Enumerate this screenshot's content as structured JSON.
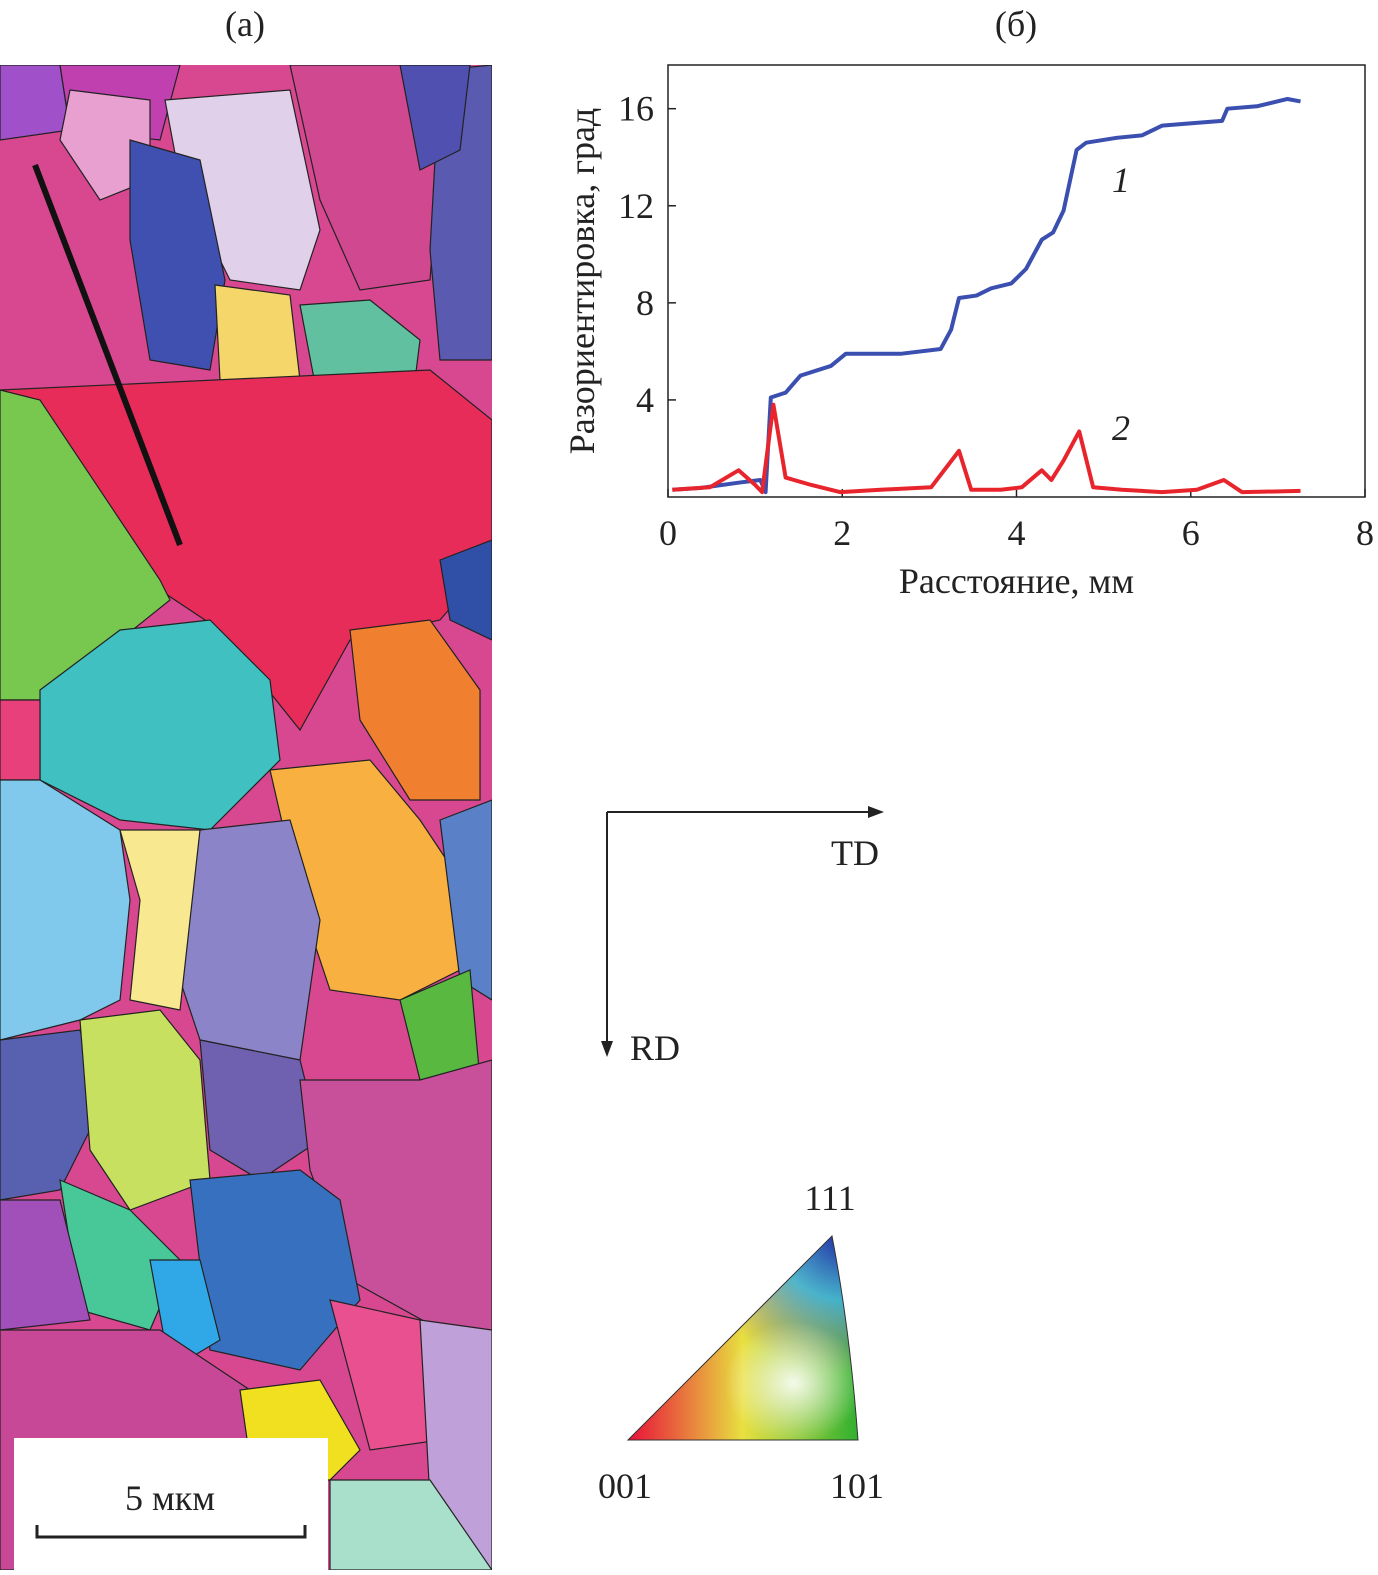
{
  "panel_labels": [
    "(а)",
    "(б)"
  ],
  "map": {
    "scale_bar": "5 мкм"
  },
  "directions": {
    "td": "TD",
    "rd": "RD"
  },
  "triangle": {
    "top": "111",
    "left": "001",
    "right": "101"
  },
  "chart_data": {
    "type": "line",
    "xlabel": "Расстояние, мм",
    "ylabel": "Разориентировка, град",
    "xlim": [
      0,
      8
    ],
    "ylim": [
      0,
      17.8
    ],
    "xticks": [
      0,
      2,
      4,
      6,
      8
    ],
    "yticks": [
      4,
      8,
      12,
      16
    ],
    "series": [
      {
        "name": "1",
        "color": "#3a4fb0",
        "x": [
          0.05,
          0.37,
          0.83,
          1.06,
          1.12,
          1.18,
          1.35,
          1.52,
          1.87,
          2.04,
          2.67,
          3.13,
          3.25,
          3.34,
          3.54,
          3.71,
          3.94,
          4.11,
          4.29,
          4.42,
          4.54,
          4.69,
          4.8,
          5.15,
          5.44,
          5.67,
          6.01,
          6.36,
          6.42,
          6.76,
          7.11,
          7.26
        ],
        "values": [
          0.3,
          0.37,
          0.6,
          0.7,
          0.2,
          4.1,
          4.3,
          5.0,
          5.4,
          5.9,
          5.9,
          6.1,
          6.9,
          8.2,
          8.3,
          8.6,
          8.8,
          9.4,
          10.6,
          10.9,
          11.8,
          14.3,
          14.6,
          14.8,
          14.9,
          15.3,
          15.4,
          15.5,
          16.0,
          16.1,
          16.4,
          16.3
        ]
      },
      {
        "name": "2",
        "color": "#e8252d",
        "x": [
          0.05,
          0.48,
          0.81,
          1.0,
          1.08,
          1.21,
          1.35,
          1.64,
          1.98,
          2.44,
          3.02,
          3.34,
          3.48,
          3.82,
          4.06,
          4.29,
          4.4,
          4.54,
          4.72,
          4.88,
          5.21,
          5.67,
          6.07,
          6.38,
          6.59,
          7.26
        ],
        "values": [
          0.3,
          0.4,
          1.1,
          0.5,
          0.2,
          3.8,
          0.8,
          0.5,
          0.2,
          0.3,
          0.4,
          1.9,
          0.3,
          0.3,
          0.4,
          1.1,
          0.7,
          1.5,
          2.7,
          0.4,
          0.3,
          0.2,
          0.3,
          0.7,
          0.2,
          0.25
        ]
      }
    ]
  }
}
